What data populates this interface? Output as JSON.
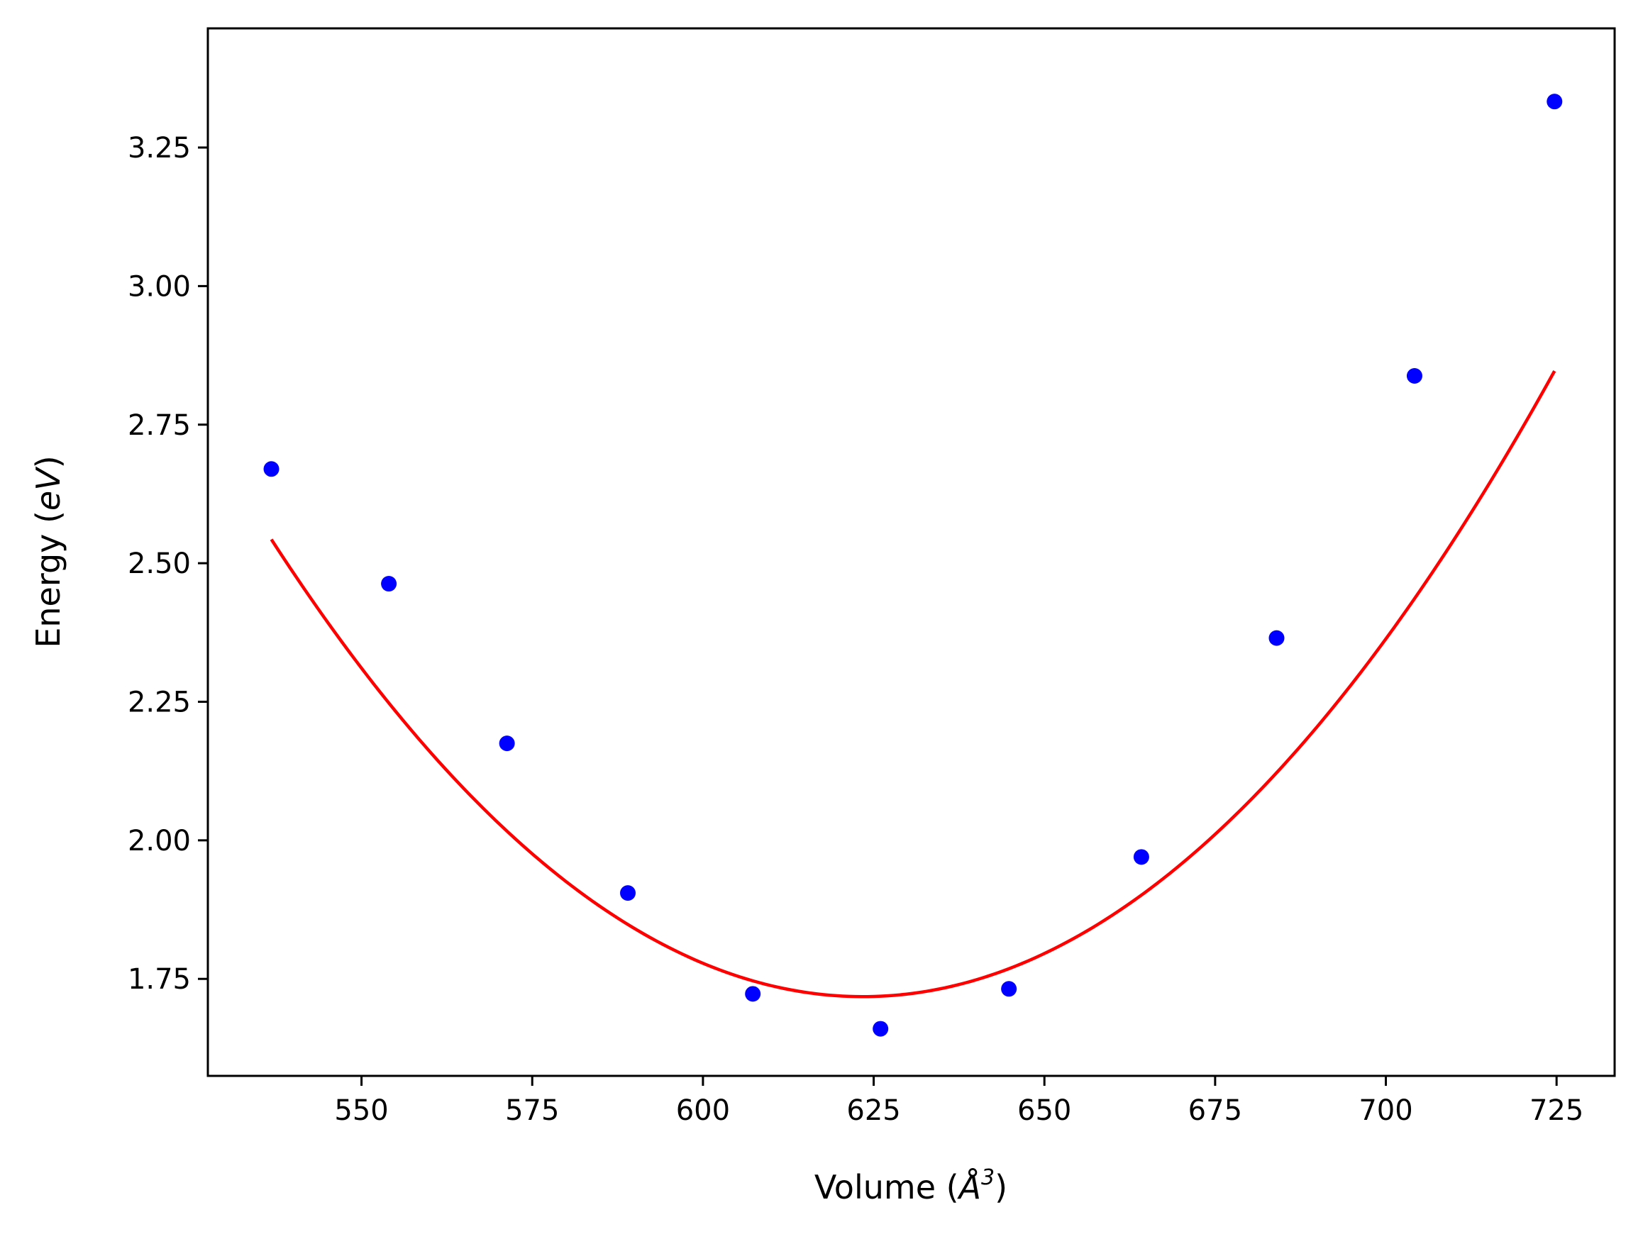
{
  "chart_data": {
    "type": "scatter",
    "title": "",
    "xlabel": "Volume (",
    "xlabel_symbol": "Å",
    "xlabel_exp": "3",
    "ylabel": "Energy (",
    "ylabel_unit": "eV",
    "xlim": [
      527.5,
      733.5
    ],
    "ylim": [
      1.575,
      3.465
    ],
    "xticks": [
      550,
      575,
      600,
      625,
      650,
      675,
      700,
      725
    ],
    "yticks": [
      1.75,
      2.0,
      2.25,
      2.5,
      2.75,
      3.0,
      3.25
    ],
    "grid": false,
    "series": [
      {
        "type": "scatter",
        "color": "#0000ff",
        "x": [
          536.8,
          554.0,
          571.3,
          589.0,
          607.3,
          626.0,
          644.8,
          664.2,
          684.0,
          704.2,
          724.7
        ],
        "y": [
          2.67,
          2.463,
          2.175,
          1.905,
          1.723,
          1.66,
          1.732,
          1.97,
          2.365,
          2.838,
          3.333
        ]
      },
      {
        "type": "line",
        "color": "#ff0000",
        "x_range": [
          536.8,
          724.7
        ],
        "fit_quadratic": {
          "a": 0.00011,
          "x0": 623.4,
          "y0": 1.718
        }
      }
    ]
  }
}
